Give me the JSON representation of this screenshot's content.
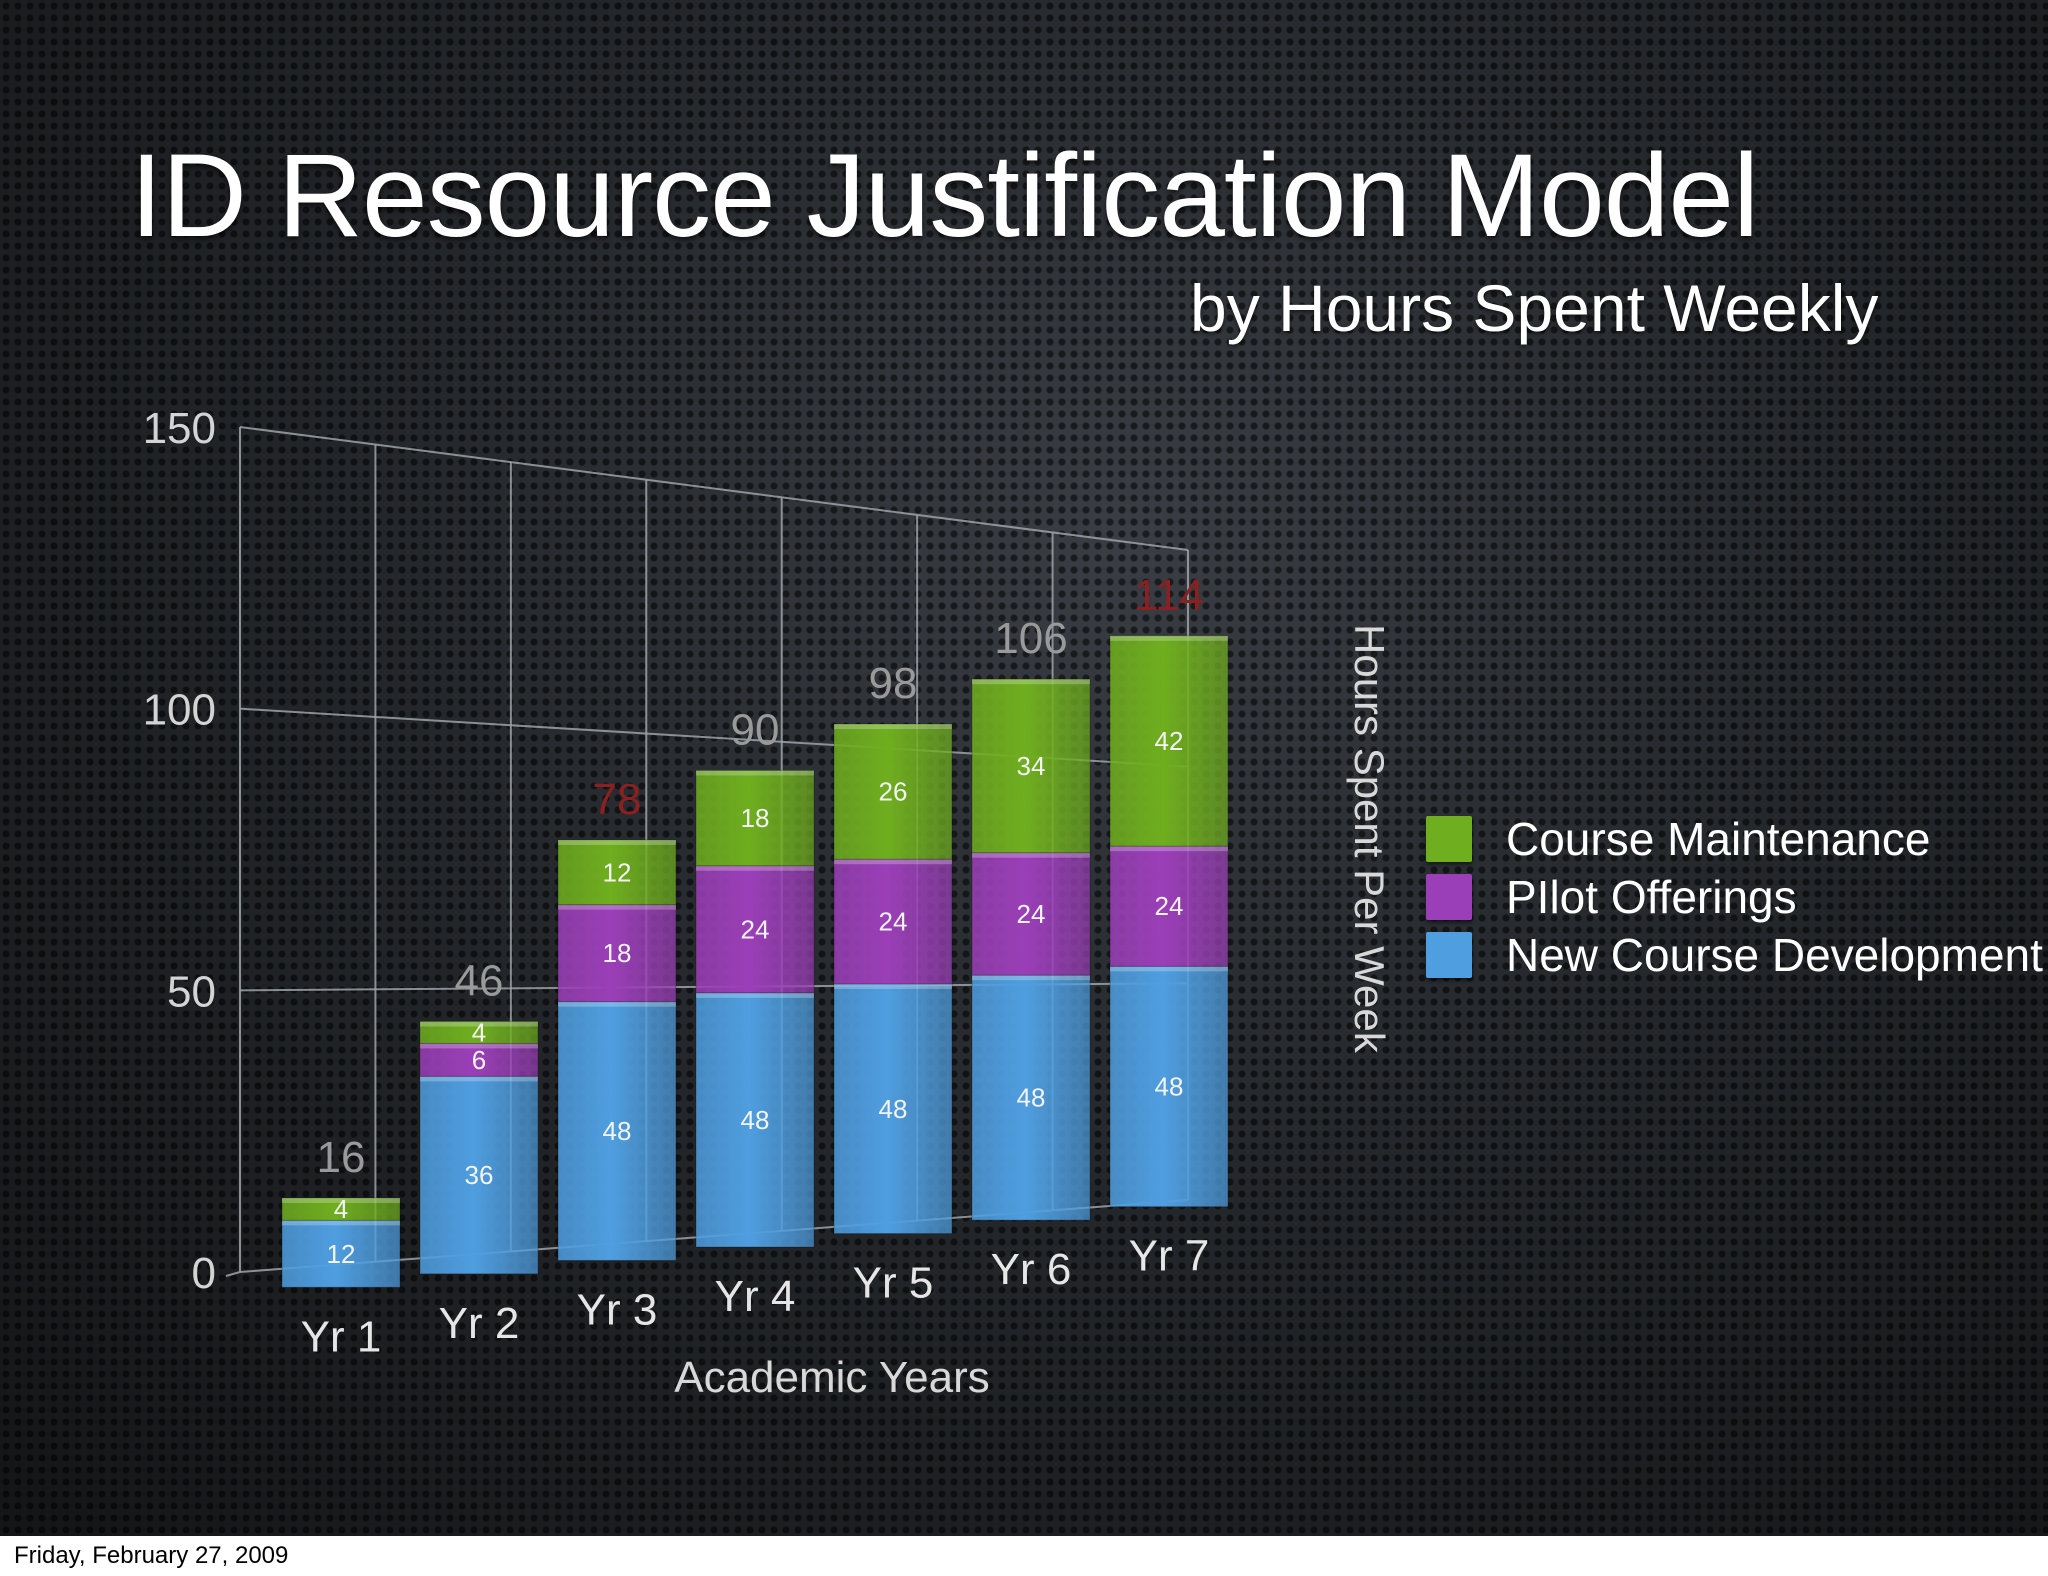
{
  "slide": {
    "title": "ID Resource Justification Model",
    "subtitle": "by Hours Spent Weekly"
  },
  "footer": {
    "date": "Friday, February 27, 2009"
  },
  "colors": {
    "new_course_development": "#4f9ee0",
    "pilot_offerings": "#9b3fb8",
    "course_maintenance": "#6fae1f",
    "total_label": "#9a9a9a",
    "total_label_highlight": "#8a2020"
  },
  "legend": [
    {
      "label": "Course Maintenance",
      "color": "#6fae1f"
    },
    {
      "label": "PIlot Offerings",
      "color": "#9b3fb8"
    },
    {
      "label": "New Course Development",
      "color": "#4f9ee0"
    }
  ],
  "chart_data": {
    "type": "bar",
    "stacked": true,
    "view": "3d-perspective",
    "categories": [
      "Yr 1",
      "Yr 2",
      "Yr 3",
      "Yr 4",
      "Yr 5",
      "Yr 6",
      "Yr 7"
    ],
    "series": [
      {
        "name": "New Course Development",
        "color": "#4f9ee0",
        "values": [
          12,
          36,
          48,
          48,
          48,
          48,
          48
        ]
      },
      {
        "name": "PIlot Offerings",
        "color": "#9b3fb8",
        "values": [
          0,
          6,
          18,
          24,
          24,
          24,
          24
        ]
      },
      {
        "name": "Course Maintenance",
        "color": "#6fae1f",
        "values": [
          4,
          4,
          12,
          18,
          26,
          34,
          42
        ]
      }
    ],
    "segment_labels": [
      [
        "12",
        "",
        "4"
      ],
      [
        "36",
        "6",
        "4"
      ],
      [
        "48",
        "18",
        "12"
      ],
      [
        "48",
        "24",
        "18"
      ],
      [
        "48",
        "24",
        "26"
      ],
      [
        "48",
        "24",
        "34"
      ],
      [
        "48",
        "24",
        "42"
      ]
    ],
    "totals": [
      "16",
      "46",
      "78",
      "90",
      "98",
      "106",
      "114"
    ],
    "highlighted_totals": [
      2,
      6
    ],
    "xlabel": "Academic Years",
    "ylabel": "Hours Spent Per Week",
    "ylim": [
      0,
      150
    ],
    "yticks": [
      "0",
      "50",
      "100",
      "150"
    ],
    "grid": true,
    "legend_position": "right"
  }
}
